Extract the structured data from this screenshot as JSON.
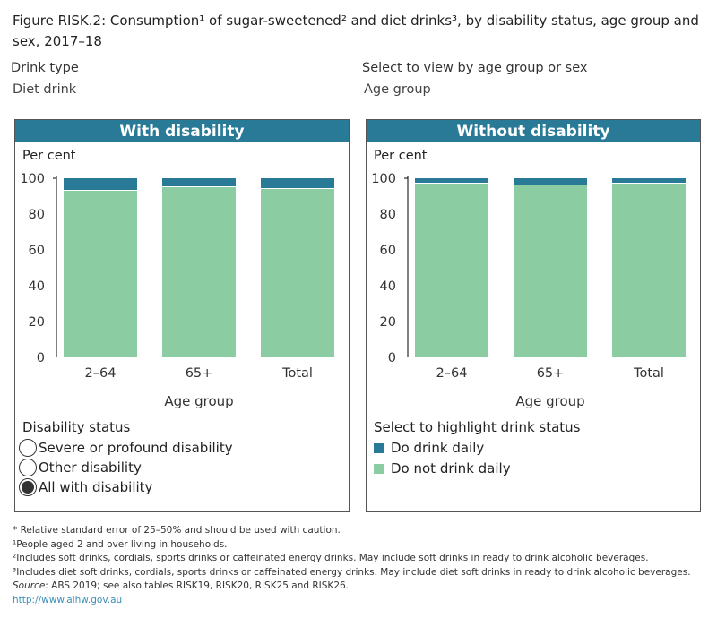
{
  "title": "Figure RISK.2: Consumption¹ of sugar-sweetened² and diet drinks³, by disability status, age group and sex, 2017–18",
  "filters": {
    "drink_type_label": "Drink type",
    "drink_type_value": "Diet drink",
    "view_label": "Select to view by age group or sex",
    "view_value": "Age group"
  },
  "colors": {
    "header": "#287a96",
    "daily": "#287a96",
    "not_daily": "#8ccca2"
  },
  "chart_data": [
    {
      "type": "bar",
      "stacked": true,
      "title": "With disability",
      "ylabel": "Per cent",
      "xlabel": "Age group",
      "ylim": [
        0,
        100
      ],
      "yticks": [
        "0",
        "20",
        "40",
        "60",
        "80",
        "100"
      ],
      "categories": [
        "2–64",
        "65+",
        "Total"
      ],
      "series": [
        {
          "name": "Do not drink daily",
          "values": [
            93,
            95,
            94
          ]
        },
        {
          "name": "Do drink daily",
          "values": [
            7,
            5,
            6
          ]
        }
      ]
    },
    {
      "type": "bar",
      "stacked": true,
      "title": "Without disability",
      "ylabel": "Per cent",
      "xlabel": "Age group",
      "ylim": [
        0,
        100
      ],
      "yticks": [
        "0",
        "20",
        "40",
        "60",
        "80",
        "100"
      ],
      "categories": [
        "2–64",
        "65+",
        "Total"
      ],
      "series": [
        {
          "name": "Do not drink daily",
          "values": [
            97,
            96,
            97
          ]
        },
        {
          "name": "Do drink daily",
          "values": [
            3,
            4,
            3
          ]
        }
      ]
    }
  ],
  "disability_status": {
    "title": "Disability status",
    "options": [
      "Severe or profound disability",
      "Other disability",
      "All with disability"
    ],
    "selected": 2
  },
  "drink_status": {
    "title": "Select to highlight drink status",
    "items": [
      "Do drink daily",
      "Do not drink daily"
    ]
  },
  "notes": [
    "* Relative standard error of 25–50% and should be used with caution.",
    "¹People aged 2 and over living in households.",
    "²Includes soft drinks, cordials, sports drinks or caffeinated energy drinks. May include soft drinks in ready to drink alcoholic beverages.",
    "³Includes diet soft drinks, cordials, sports drinks or caffeinated energy drinks. May include diet soft drinks in ready to drink alcoholic beverages."
  ],
  "source_label": "Source",
  "source_text": ": ABS 2019; see also tables RISK19, RISK20, RISK25 and RISK26.",
  "link": "http://www.aihw.gov.au"
}
